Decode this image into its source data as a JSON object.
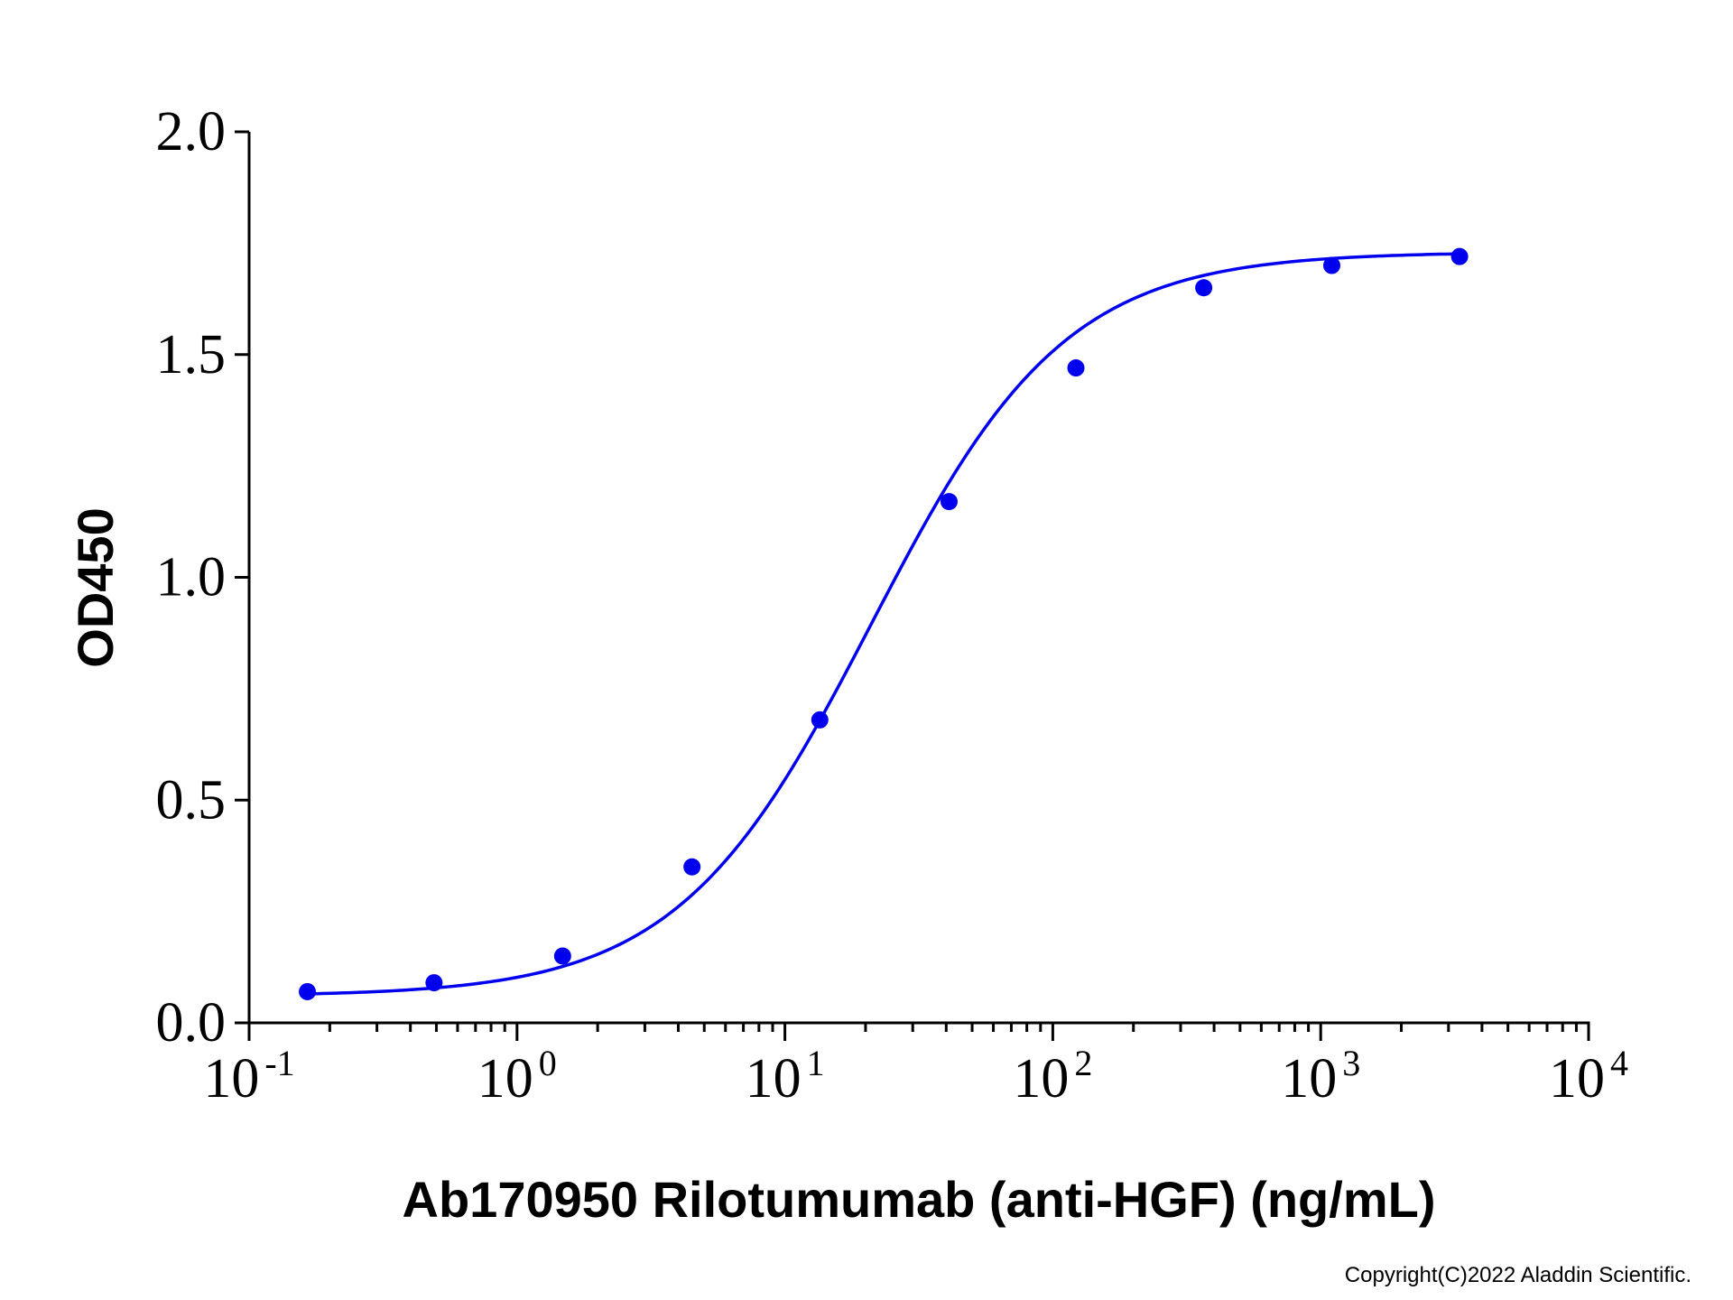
{
  "chart_data": {
    "type": "scatter",
    "title": "",
    "xlabel": "Ab170950 Rilotumumab (anti-HGF) (ng/mL)",
    "ylabel": "OD450",
    "x_scale": "log",
    "xlim": [
      0.1,
      10000
    ],
    "ylim": [
      0,
      2.0
    ],
    "y_ticks": [
      "0.0",
      "0.5",
      "1.0",
      "1.5",
      "2.0"
    ],
    "x_ticks": [
      {
        "base": "10",
        "exp": "-1",
        "value": 0.1
      },
      {
        "base": "10",
        "exp": "0",
        "value": 1
      },
      {
        "base": "10",
        "exp": "1",
        "value": 10
      },
      {
        "base": "10",
        "exp": "2",
        "value": 100
      },
      {
        "base": "10",
        "exp": "3",
        "value": 1000
      },
      {
        "base": "10",
        "exp": "4",
        "value": 10000
      }
    ],
    "grid": false,
    "legend": "none",
    "series": [
      {
        "color": "#0000ee",
        "marker": "circle",
        "fit": "4PL sigmoid curve",
        "x": [
          0.165,
          0.49,
          1.48,
          4.5,
          13.5,
          41,
          122,
          366,
          1100,
          3300
        ],
        "y": [
          0.07,
          0.09,
          0.15,
          0.35,
          0.68,
          1.17,
          1.47,
          1.65,
          1.7,
          1.72
        ]
      }
    ]
  },
  "copyright": "Copyright(C)2022 Aladdin Scientific."
}
